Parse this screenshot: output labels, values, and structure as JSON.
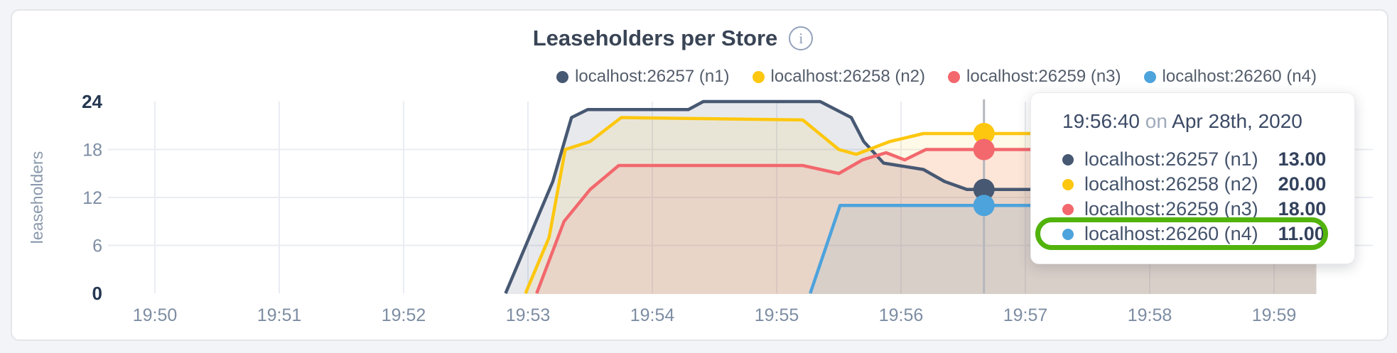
{
  "page": {
    "background": "#f2f4f8",
    "card_background": "#ffffff",
    "card_border": "#e4e5e8"
  },
  "header": {
    "title": "Leaseholders per Store",
    "info_glyph": "i"
  },
  "legend": [
    {
      "label": "localhost:26257 (n1)",
      "color": "#475872"
    },
    {
      "label": "localhost:26258 (n2)",
      "color": "#FDC70F"
    },
    {
      "label": "localhost:26259 (n3)",
      "color": "#F2686D"
    },
    {
      "label": "localhost:26260 (n4)",
      "color": "#4DA3DC"
    }
  ],
  "y_axis": {
    "label": "leaseholders",
    "ticks": [
      0,
      6,
      12,
      18,
      24
    ],
    "bold_ticks": [
      0,
      24
    ]
  },
  "x_axis": {
    "ticks": [
      "19:50",
      "19:51",
      "19:52",
      "19:53",
      "19:54",
      "19:55",
      "19:56",
      "19:57",
      "19:58",
      "19:59"
    ]
  },
  "chart_data": {
    "type": "area",
    "title": "Leaseholders per Store",
    "ylabel": "leaseholders",
    "ylim": [
      0,
      24
    ],
    "x_unit": "minutes after 19:50",
    "x_tick_minutes": [
      0,
      1,
      2,
      3,
      4,
      5,
      6,
      7,
      8,
      9
    ],
    "x_tick_labels": [
      "19:50",
      "19:51",
      "19:52",
      "19:53",
      "19:54",
      "19:55",
      "19:56",
      "19:57",
      "19:58",
      "19:59"
    ],
    "grid": "on",
    "legend_position": "top-right",
    "series": [
      {
        "name": "localhost:26257 (n1)",
        "color": "#475872",
        "fill_opacity": 0.13,
        "points": [
          [
            2.82,
            0
          ],
          [
            3.2,
            14
          ],
          [
            3.35,
            22
          ],
          [
            3.48,
            23
          ],
          [
            4.29,
            23
          ],
          [
            4.41,
            24
          ],
          [
            5.35,
            24
          ],
          [
            5.6,
            22
          ],
          [
            5.7,
            19
          ],
          [
            5.86,
            16.3
          ],
          [
            6.18,
            15.5
          ],
          [
            6.35,
            14
          ],
          [
            6.53,
            13
          ],
          [
            9.34,
            13
          ]
        ]
      },
      {
        "name": "localhost:26258 (n2)",
        "color": "#FDC70F",
        "fill_opacity": 0.1,
        "points": [
          [
            2.98,
            0
          ],
          [
            3.17,
            7
          ],
          [
            3.3,
            18
          ],
          [
            3.5,
            19
          ],
          [
            3.75,
            22
          ],
          [
            5.21,
            21.7
          ],
          [
            5.5,
            18
          ],
          [
            5.64,
            17.4
          ],
          [
            5.91,
            19
          ],
          [
            6.18,
            20
          ],
          [
            9.34,
            20
          ]
        ]
      },
      {
        "name": "localhost:26259 (n3)",
        "color": "#F2686D",
        "fill_opacity": 0.13,
        "points": [
          [
            3.07,
            0
          ],
          [
            3.29,
            9
          ],
          [
            3.5,
            13
          ],
          [
            3.73,
            16
          ],
          [
            5.21,
            16
          ],
          [
            5.5,
            15
          ],
          [
            5.69,
            16.7
          ],
          [
            5.88,
            17.6
          ],
          [
            6.03,
            16.7
          ],
          [
            6.2,
            18
          ],
          [
            9.34,
            18
          ]
        ]
      },
      {
        "name": "localhost:26260 (n4)",
        "color": "#4DA3DC",
        "fill_opacity": 0.1,
        "points": [
          [
            5.27,
            0
          ],
          [
            5.51,
            11
          ],
          [
            9.34,
            11
          ]
        ]
      }
    ],
    "hover": {
      "time": "19:56:40",
      "t_minutes_after_1950": 6.667,
      "values": [
        13,
        20,
        18,
        11
      ]
    }
  },
  "tooltip": {
    "time": "19:56:40",
    "on_word": "on",
    "date": "Apr 28th, 2020",
    "rows": [
      {
        "label": "localhost:26257 (n1)",
        "value": "13.00",
        "color": "#475872"
      },
      {
        "label": "localhost:26258 (n2)",
        "value": "20.00",
        "color": "#FDC70F"
      },
      {
        "label": "localhost:26259 (n3)",
        "value": "18.00",
        "color": "#F2686D"
      },
      {
        "label": "localhost:26260 (n4)",
        "value": "11.00",
        "color": "#4DA3DC"
      }
    ],
    "highlight_row_index": 3,
    "highlight_color": "#52b30d"
  },
  "colors": {
    "grid": "#e9ecf2",
    "crosshair": "#b4b7bc",
    "tick_text": "#7d8da3",
    "tick_text_bold": "#253751",
    "axis_label": "#8a99ad",
    "title_text": "#394455"
  }
}
